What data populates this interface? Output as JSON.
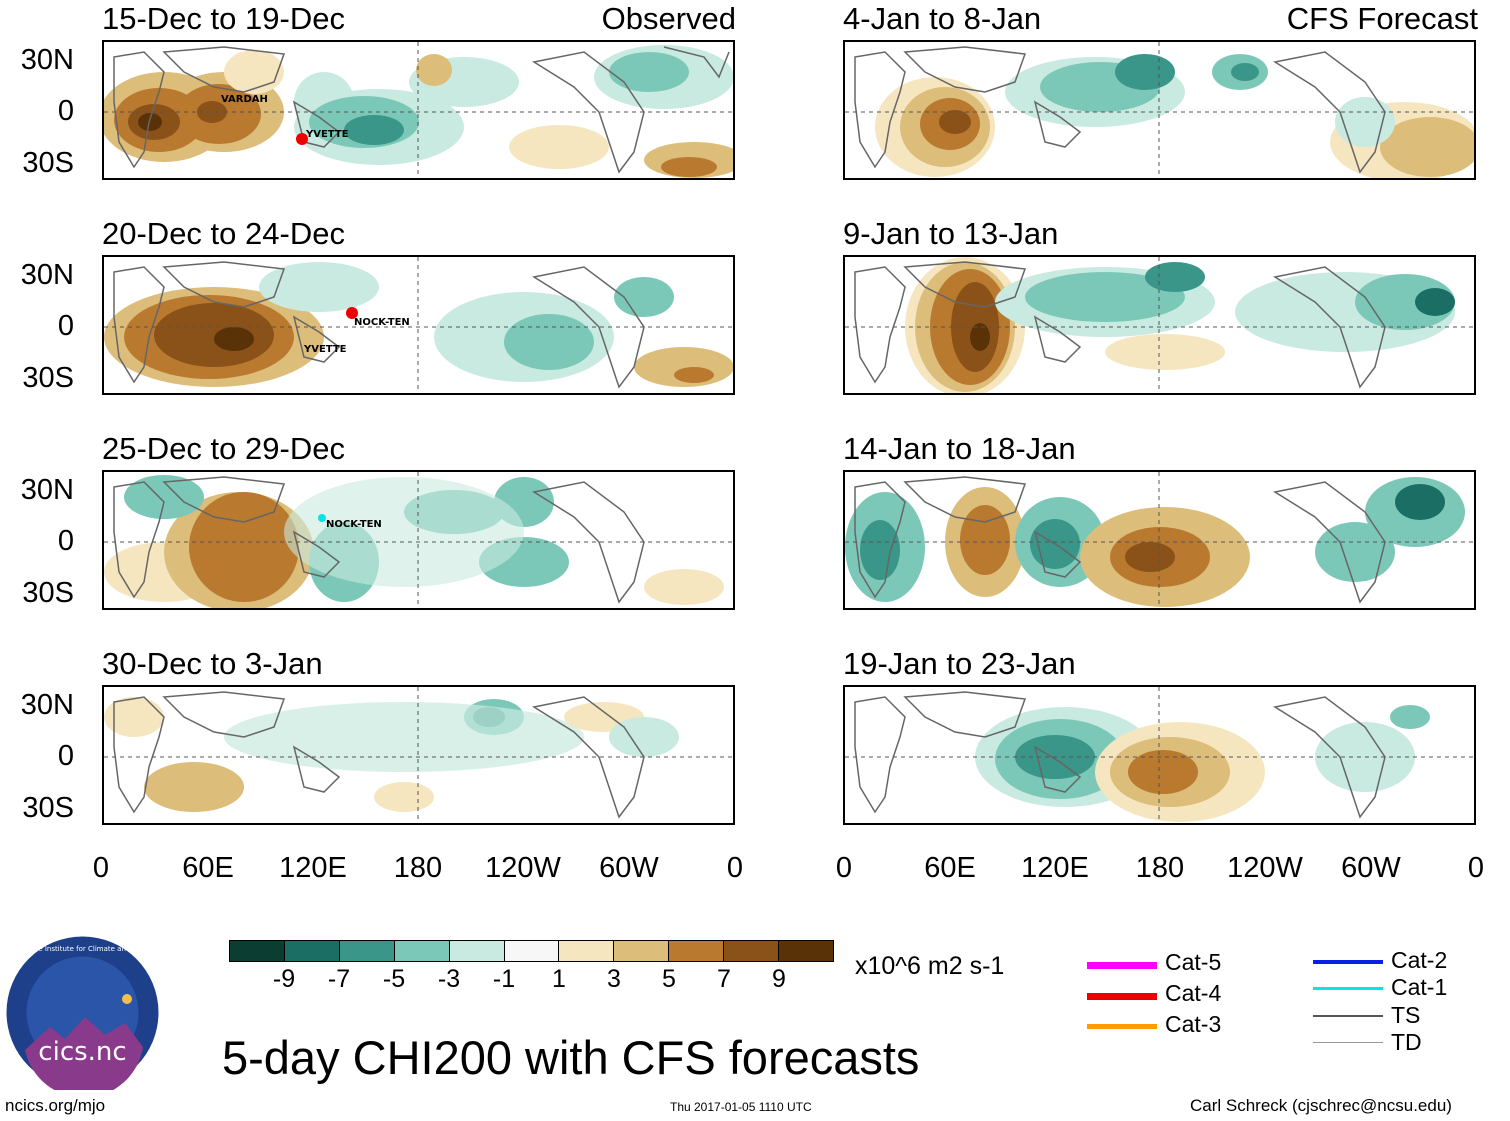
{
  "headers": {
    "left": "Observed",
    "right": "CFS Forecast"
  },
  "panels_left": [
    {
      "title": "15-Dec to 19-Dec",
      "storms": [
        "VARDAH",
        "YVETTE"
      ]
    },
    {
      "title": "20-Dec to 24-Dec",
      "storms": [
        "NOCK-TEN",
        "YVETTE"
      ]
    },
    {
      "title": "25-Dec to 29-Dec",
      "storms": [
        "NOCK-TEN"
      ]
    },
    {
      "title": "30-Dec to 3-Jan",
      "storms": []
    }
  ],
  "panels_right": [
    {
      "title": "4-Jan to 8-Jan"
    },
    {
      "title": "9-Jan to 13-Jan"
    },
    {
      "title": "14-Jan to 18-Jan"
    },
    {
      "title": "19-Jan to 23-Jan"
    }
  ],
  "lat_labels": [
    "30N",
    "0",
    "30S"
  ],
  "lon_labels": [
    "0",
    "60E",
    "120E",
    "180",
    "120W",
    "60W",
    "0"
  ],
  "colorbar": {
    "ticks": [
      "-9",
      "-7",
      "-5",
      "-3",
      "-1",
      "1",
      "3",
      "5",
      "7",
      "9"
    ],
    "colors": [
      "#0b3d33",
      "#1a6e63",
      "#3a9688",
      "#7cc8b8",
      "#c9eae0",
      "#f7f7f7",
      "#f5e6c0",
      "#dcbd7a",
      "#b9792f",
      "#8a5218",
      "#5a3208"
    ],
    "units": "x10^6 m2 s-1"
  },
  "legend": [
    {
      "label": "Cat-5",
      "color": "#ff00ff"
    },
    {
      "label": "Cat-4",
      "color": "#ee0000"
    },
    {
      "label": "Cat-3",
      "color": "#ff9d00"
    },
    {
      "label": "Cat-2",
      "color": "#0a1fe6"
    },
    {
      "label": "Cat-1",
      "color": "#00e5e5"
    },
    {
      "label": "TS",
      "color": "#555555"
    },
    {
      "label": "TD",
      "color": "#999999"
    }
  ],
  "main_title": "5-day CHI200 with CFS forecasts",
  "logo_text": "cics.nc",
  "logo_ring_text": "Cooperative Institute for Climate and Satellites",
  "footer": {
    "left": "ncics.org/mjo",
    "center": "Thu 2017-01-05 1110 UTC",
    "right": "Carl Schreck (cjschrec@ncsu.edu)"
  }
}
